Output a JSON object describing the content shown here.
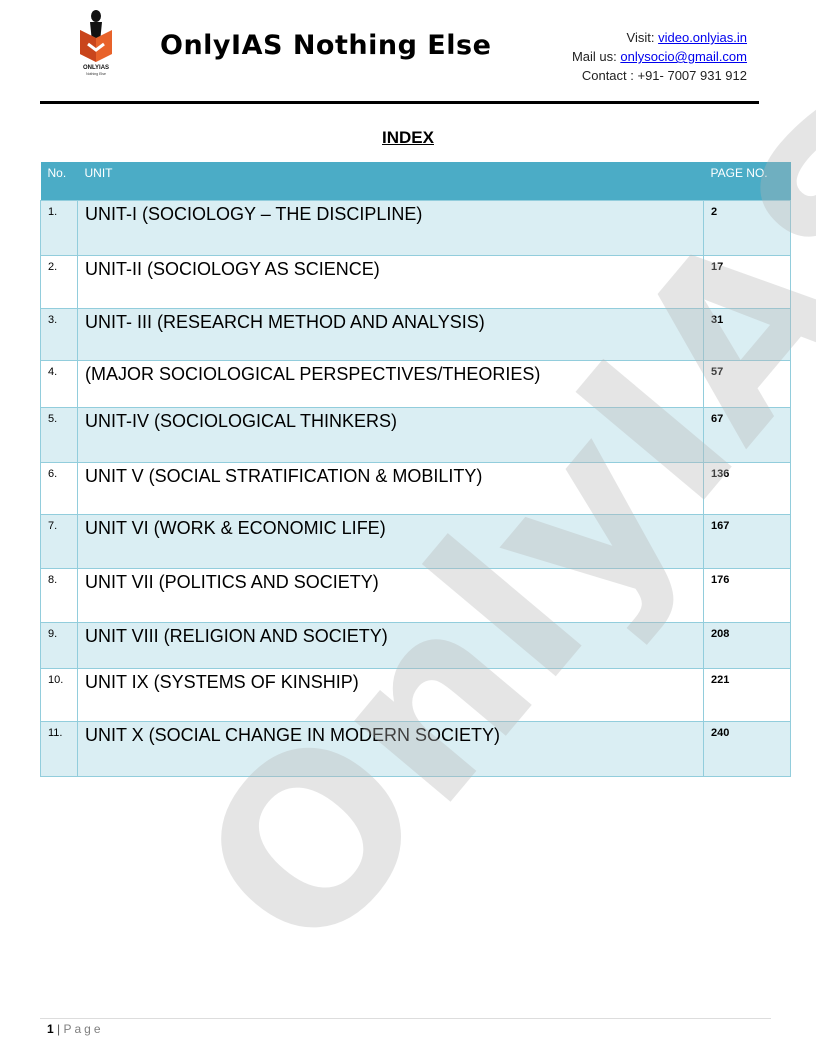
{
  "header": {
    "brand": "OnlyIAS Nothing Else",
    "logo_text": "ONLYIAS",
    "logo_tagline": "Nothing Else",
    "visit_label": "Visit: ",
    "visit_link": "video.onlyias.in",
    "mail_label": "Mail us: ",
    "mail_link": "onlysocio@gmail.com",
    "contact": "Contact : +91- 7007 931 912"
  },
  "title": "INDEX",
  "table": {
    "headers": [
      "No.",
      "UNIT",
      "PAGE NO."
    ],
    "rows": [
      {
        "no": "1.",
        "unit": "UNIT-I (SOCIOLOGY – THE DISCIPLINE)",
        "page": "2"
      },
      {
        "no": "2.",
        "unit": "UNIT-II (SOCIOLOGY AS SCIENCE)",
        "page": "17"
      },
      {
        "no": "3.",
        "unit": "UNIT- III (RESEARCH METHOD AND ANALYSIS)",
        "page": "31"
      },
      {
        "no": "4.",
        "unit": "(MAJOR SOCIOLOGICAL PERSPECTIVES/THEORIES)",
        "page": "57"
      },
      {
        "no": "5.",
        "unit": "UNIT-IV (SOCIOLOGICAL THINKERS)",
        "page": "67"
      },
      {
        "no": "6.",
        "unit": "UNIT V (SOCIAL STRATIFICATION & MOBILITY)",
        "page": "136"
      },
      {
        "no": "7.",
        "unit": "UNIT VI (WORK & ECONOMIC LIFE)",
        "page": "167"
      },
      {
        "no": "8.",
        "unit": "UNIT VII (POLITICS AND SOCIETY)",
        "page": "176"
      },
      {
        "no": "9.",
        "unit": "UNIT VIII (RELIGION AND SOCIETY)",
        "page": "208"
      },
      {
        "no": "10.",
        "unit": "UNIT IX (SYSTEMS OF KINSHIP)",
        "page": "221"
      },
      {
        "no": "11.",
        "unit": "UNIT X (SOCIAL CHANGE IN MODERN SOCIETY)",
        "page": "240"
      }
    ]
  },
  "watermark": "OnlyIAS",
  "footer": {
    "page_number": "1",
    "separator": " | ",
    "page_word": "Page"
  },
  "colors": {
    "header_bg": "#4bacc6",
    "row_alt": "#daeef3",
    "border": "#92cddc"
  }
}
